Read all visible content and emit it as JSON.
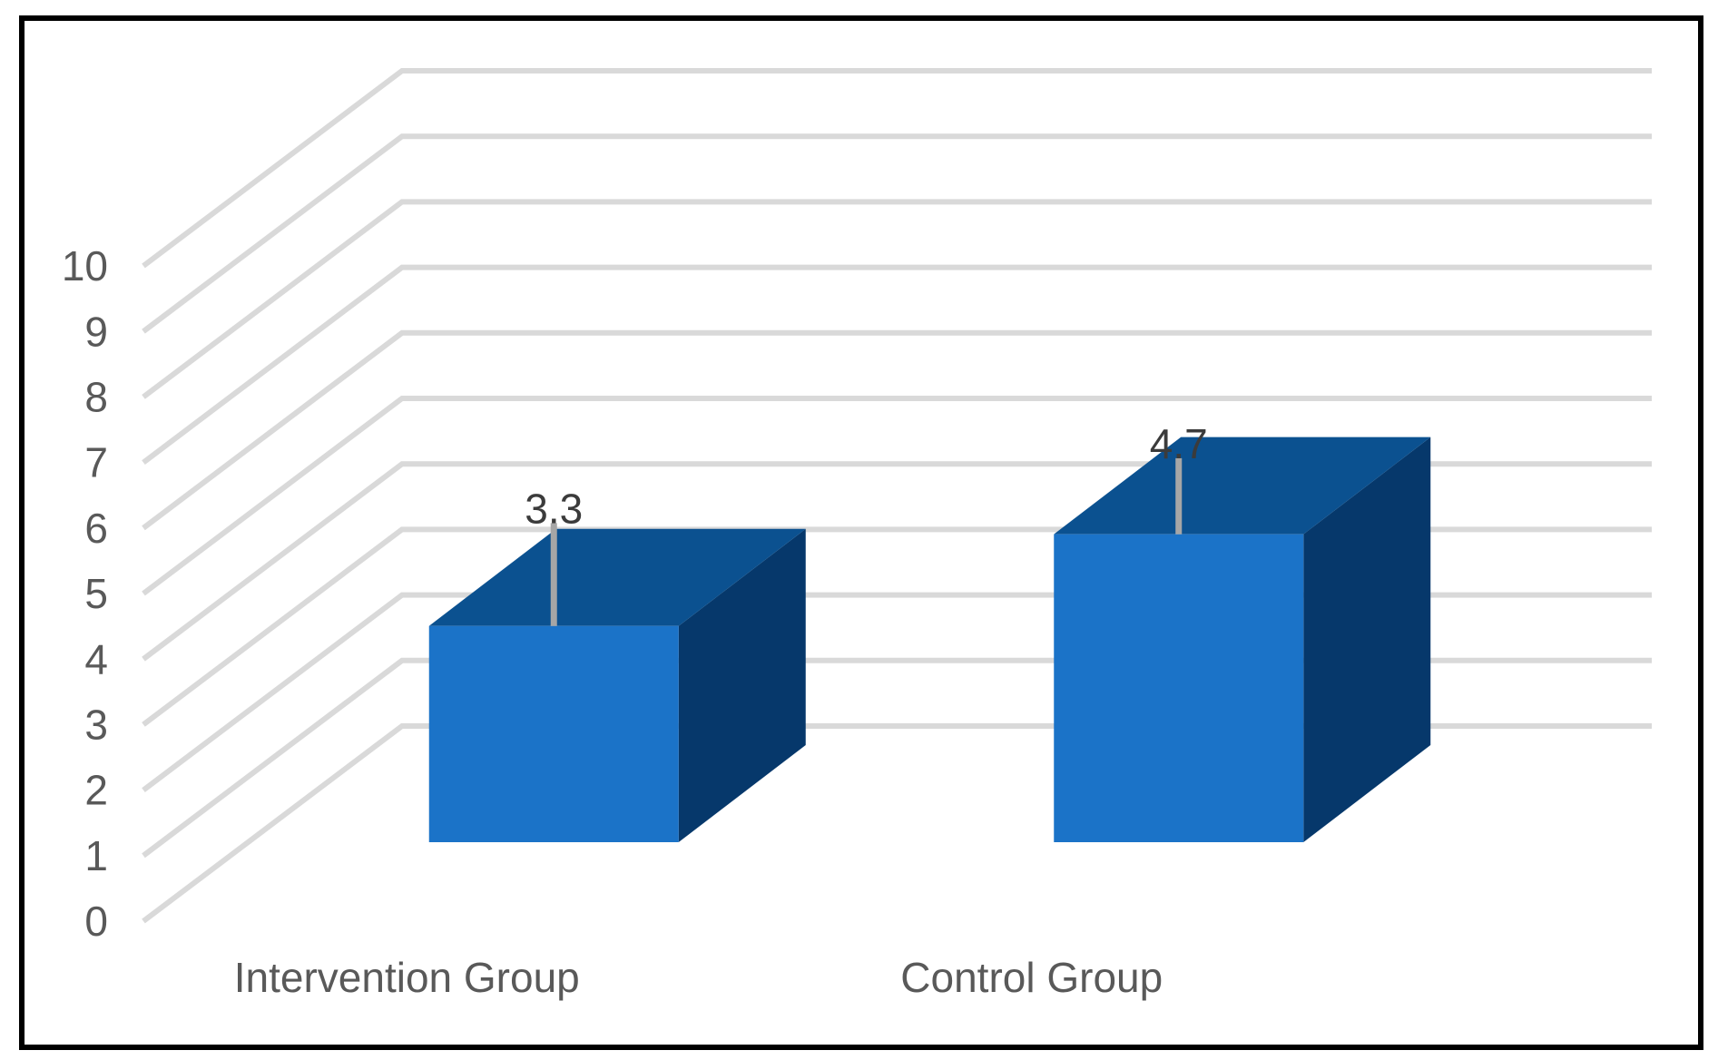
{
  "chart_data": {
    "type": "bar",
    "variant": "3d-clustered-column",
    "title": "",
    "categories": [
      "Intervention Group",
      "Control Group"
    ],
    "series": [
      {
        "values": [
          3.3,
          4.7
        ]
      }
    ],
    "data_labels": [
      "3.3",
      "4.7"
    ],
    "error_bars_plus": [
      1.57,
      1.16
    ],
    "ylim": [
      0,
      10
    ],
    "yticks": [
      0,
      1,
      2,
      3,
      4,
      5,
      6,
      7,
      8,
      9,
      10
    ],
    "grid": true,
    "legend": "none",
    "colors": {
      "bar_front": "#1B73C8",
      "bar_top": "#0B5190",
      "bar_side": "#06386B",
      "gridline": "#D9D9D9",
      "error_bar": "#A6A6A6",
      "axis_text": "#595959",
      "data_label_text": "#3B3B3B",
      "frame_border": "#000000",
      "background": "#FFFFFF"
    }
  }
}
